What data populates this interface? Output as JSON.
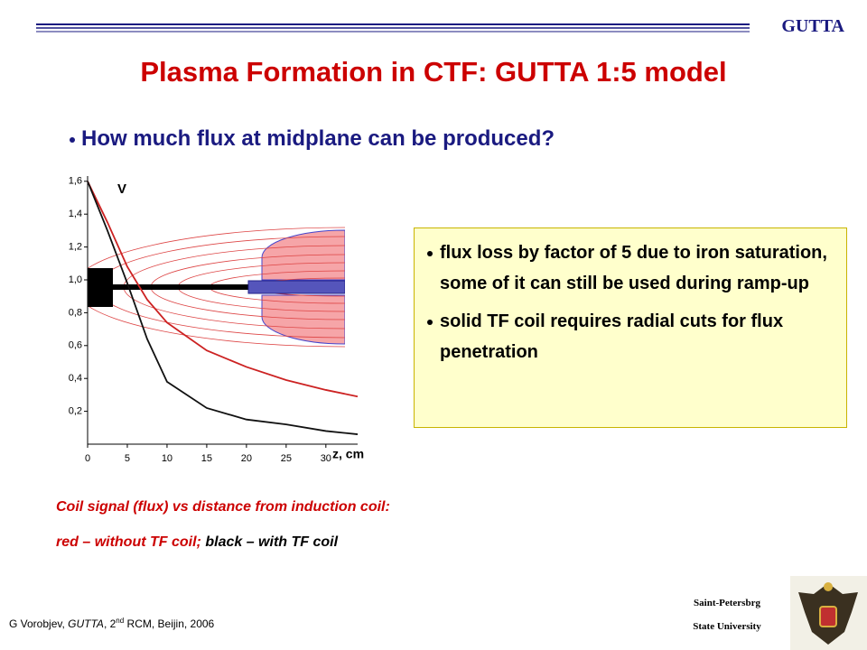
{
  "header": {
    "logo_text": "GUTTA"
  },
  "title": "Plasma Formation in CTF: GUTTA 1:5 model",
  "bullet": "How much flux at midplane can be produced?",
  "box": {
    "items": [
      "flux loss by factor of 5 due to iron saturation, some of it can still be used during ramp-up",
      "solid TF coil requires radial cuts for flux penetration"
    ]
  },
  "caption": {
    "line1": "Coil signal (flux) vs distance from induction coil:",
    "line2_red": "red – without TF coil;",
    "line2_black": "black – with TF coil"
  },
  "footer": {
    "author": "G Vorobjev, ",
    "project": "GUTTA",
    "meeting_num": ", 2",
    "meeting_sup": "nd",
    "meeting_rest": " RCM, Beijin, 2006",
    "university_line1": "Saint-Petersbrg",
    "university_line2": "State University"
  },
  "chart_data": {
    "type": "line",
    "y_label": "V",
    "x_label": "z, cm",
    "x": [
      0,
      2.5,
      5,
      7.5,
      10,
      15,
      20,
      25,
      30,
      34
    ],
    "series": [
      {
        "name": "red",
        "color": "#cc2222",
        "values": [
          1.6,
          1.35,
          1.08,
          0.88,
          0.74,
          0.57,
          0.47,
          0.39,
          0.33,
          0.29
        ]
      },
      {
        "name": "black",
        "color": "#111111",
        "values": [
          1.6,
          1.3,
          0.98,
          0.64,
          0.38,
          0.22,
          0.15,
          0.12,
          0.08,
          0.06
        ]
      }
    ],
    "xlim": [
      0,
      34
    ],
    "ylim": [
      0,
      1.6
    ],
    "xticks": [
      0,
      5,
      10,
      15,
      20,
      25,
      30
    ],
    "yticks": [
      {
        "value": 0.2,
        "label": "0,2"
      },
      {
        "value": 0.4,
        "label": "0,4"
      },
      {
        "value": 0.6,
        "label": "0,6"
      },
      {
        "value": 0.8,
        "label": "0,8"
      },
      {
        "value": 1.0,
        "label": "1,0"
      },
      {
        "value": 1.2,
        "label": "1,2"
      },
      {
        "value": 1.4,
        "label": "1,4"
      },
      {
        "value": 1.6,
        "label": "1,6"
      }
    ]
  }
}
